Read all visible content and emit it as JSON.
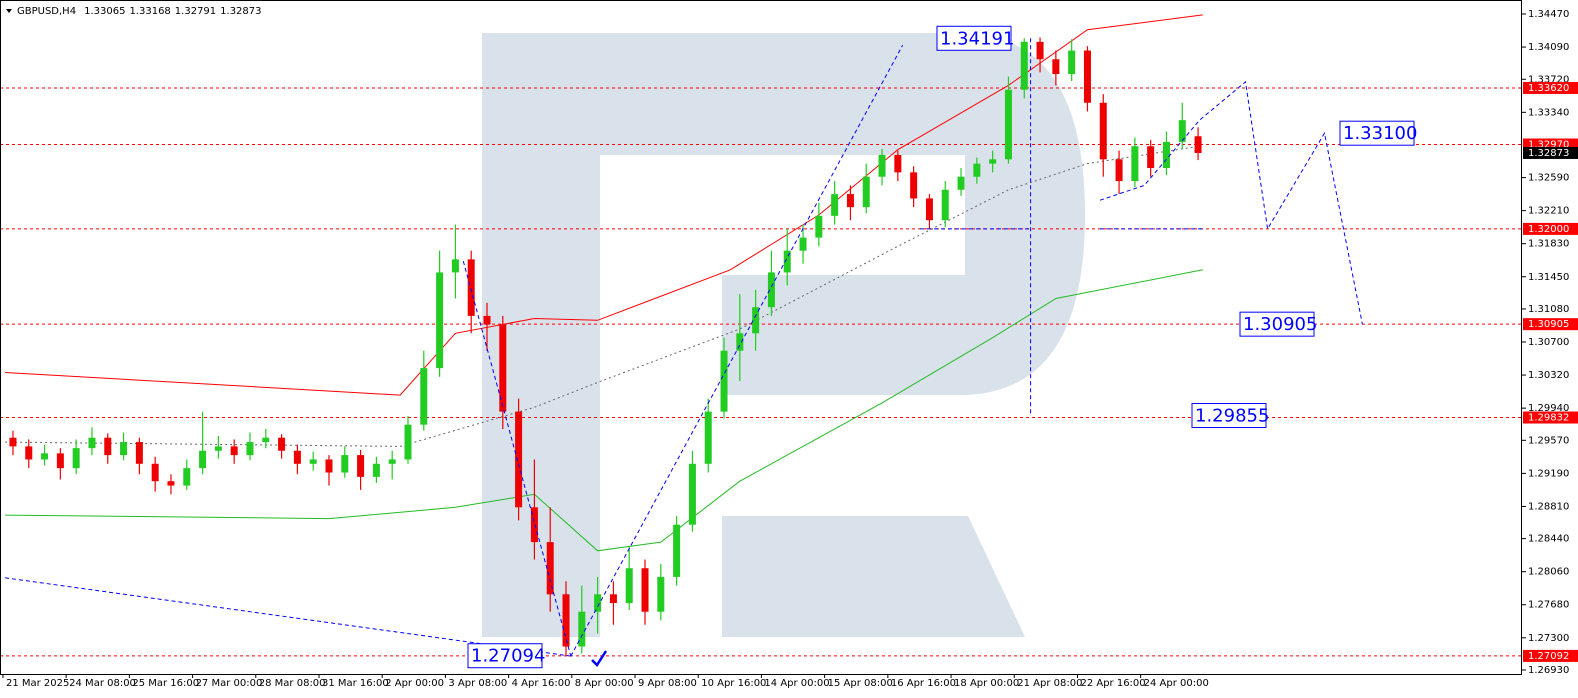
{
  "chart_data": {
    "type": "candlestick",
    "title": "GBPUSD,H4",
    "xlim": [
      -0.82,
      95.5
    ],
    "ylim": [
      1.26884,
      1.34631
    ],
    "up_color": "#22cc22",
    "down_color": "#ee0000",
    "candles": [
      [
        1.296,
        1.2968,
        1.294,
        1.295
      ],
      [
        1.295,
        1.2958,
        1.2925,
        1.2935
      ],
      [
        1.2935,
        1.2952,
        1.2928,
        1.2942
      ],
      [
        1.2942,
        1.2948,
        1.2912,
        1.2925
      ],
      [
        1.2925,
        1.2958,
        1.2918,
        1.2948
      ],
      [
        1.2948,
        1.2972,
        1.294,
        1.296
      ],
      [
        1.296,
        1.2965,
        1.293,
        1.294
      ],
      [
        1.294,
        1.2966,
        1.2934,
        1.2955
      ],
      [
        1.2955,
        1.296,
        1.2918,
        1.293
      ],
      [
        1.293,
        1.2938,
        1.2898,
        1.291
      ],
      [
        1.291,
        1.2918,
        1.2895,
        1.2905
      ],
      [
        1.2905,
        1.2935,
        1.29,
        1.2925
      ],
      [
        1.2925,
        1.299,
        1.2918,
        1.2945
      ],
      [
        1.2945,
        1.2962,
        1.2936,
        1.295
      ],
      [
        1.295,
        1.2958,
        1.293,
        1.294
      ],
      [
        1.294,
        1.2966,
        1.2934,
        1.2955
      ],
      [
        1.2955,
        1.297,
        1.2948,
        1.296
      ],
      [
        1.296,
        1.2964,
        1.2936,
        1.2945
      ],
      [
        1.2945,
        1.2952,
        1.2918,
        1.293
      ],
      [
        1.293,
        1.2944,
        1.2922,
        1.2935
      ],
      [
        1.2935,
        1.294,
        1.2905,
        1.292
      ],
      [
        1.292,
        1.295,
        1.2914,
        1.294
      ],
      [
        1.294,
        1.2946,
        1.29,
        1.2915
      ],
      [
        1.2915,
        1.2938,
        1.2908,
        1.293
      ],
      [
        1.293,
        1.2945,
        1.2912,
        1.2935
      ],
      [
        1.2935,
        1.2985,
        1.293,
        1.2975
      ],
      [
        1.2975,
        1.306,
        1.2968,
        1.304
      ],
      [
        1.304,
        1.3175,
        1.303,
        1.315
      ],
      [
        1.315,
        1.3205,
        1.312,
        1.3165
      ],
      [
        1.3165,
        1.3175,
        1.308,
        1.31
      ],
      [
        1.31,
        1.3115,
        1.306,
        1.309
      ],
      [
        1.309,
        1.31,
        1.297,
        1.299
      ],
      [
        1.299,
        1.3005,
        1.2865,
        1.288
      ],
      [
        1.288,
        1.2935,
        1.282,
        1.284
      ],
      [
        1.284,
        1.288,
        1.276,
        1.278
      ],
      [
        1.278,
        1.2795,
        1.2709,
        1.272
      ],
      [
        1.272,
        1.279,
        1.2712,
        1.276
      ],
      [
        1.276,
        1.28,
        1.2735,
        1.278
      ],
      [
        1.278,
        1.2795,
        1.2745,
        1.277
      ],
      [
        1.277,
        1.2835,
        1.2762,
        1.281
      ],
      [
        1.281,
        1.282,
        1.2745,
        1.276
      ],
      [
        1.276,
        1.2815,
        1.275,
        1.28
      ],
      [
        1.28,
        1.287,
        1.279,
        1.286
      ],
      [
        1.286,
        1.2945,
        1.2852,
        1.293
      ],
      [
        1.293,
        1.3005,
        1.292,
        1.299
      ],
      [
        1.299,
        1.3075,
        1.2982,
        1.306
      ],
      [
        1.306,
        1.3125,
        1.3025,
        1.308
      ],
      [
        1.308,
        1.313,
        1.306,
        1.311
      ],
      [
        1.311,
        1.3175,
        1.31,
        1.315
      ],
      [
        1.315,
        1.32,
        1.3135,
        1.3175
      ],
      [
        1.3175,
        1.3205,
        1.316,
        1.319
      ],
      [
        1.319,
        1.323,
        1.318,
        1.3215
      ],
      [
        1.3215,
        1.3255,
        1.3205,
        1.324
      ],
      [
        1.324,
        1.325,
        1.321,
        1.3225
      ],
      [
        1.3225,
        1.3275,
        1.3218,
        1.326
      ],
      [
        1.326,
        1.3292,
        1.325,
        1.3285
      ],
      [
        1.3285,
        1.329,
        1.3255,
        1.3265
      ],
      [
        1.3265,
        1.3272,
        1.3225,
        1.3235
      ],
      [
        1.3235,
        1.324,
        1.32,
        1.321
      ],
      [
        1.321,
        1.3255,
        1.3202,
        1.3245
      ],
      [
        1.3245,
        1.327,
        1.3238,
        1.326
      ],
      [
        1.326,
        1.3282,
        1.3252,
        1.3275
      ],
      [
        1.3275,
        1.329,
        1.3265,
        1.328
      ],
      [
        1.328,
        1.3375,
        1.3275,
        1.336
      ],
      [
        1.336,
        1.34191,
        1.335,
        1.3415
      ],
      [
        1.3415,
        1.342,
        1.338,
        1.3395
      ],
      [
        1.3395,
        1.3405,
        1.3365,
        1.3378
      ],
      [
        1.3378,
        1.3418,
        1.337,
        1.3405
      ],
      [
        1.3405,
        1.341,
        1.3335,
        1.3345
      ],
      [
        1.3345,
        1.3355,
        1.326,
        1.328
      ],
      [
        1.328,
        1.329,
        1.324,
        1.3255
      ],
      [
        1.3255,
        1.3305,
        1.3248,
        1.3295
      ],
      [
        1.3295,
        1.3302,
        1.326,
        1.327
      ],
      [
        1.327,
        1.3312,
        1.3262,
        1.33
      ],
      [
        1.33,
        1.3345,
        1.3292,
        1.3325
      ],
      [
        1.33065,
        1.33168,
        1.32791,
        1.32873
      ]
    ],
    "moving_averages": [
      {
        "color": "#ff0000",
        "style": "solid",
        "x": [
          -0.5,
          24.5,
          28,
          33,
          37,
          45.4,
          51,
          56,
          63,
          68,
          75.3
        ],
        "values": [
          1.3035,
          1.3009,
          1.308,
          1.3097,
          1.3095,
          1.3153,
          1.3216,
          1.3291,
          1.3365,
          1.3429,
          1.3446
        ]
      },
      {
        "color": "#22bb22",
        "style": "solid",
        "x": [
          -0.5,
          20,
          28,
          33,
          37,
          41,
          46,
          55,
          62,
          66,
          75.3
        ],
        "values": [
          1.2871,
          1.2867,
          1.288,
          1.2895,
          1.283,
          1.284,
          1.291,
          1.3,
          1.3075,
          1.312,
          1.3153
        ]
      },
      {
        "color": "#666666",
        "style": "dotted",
        "x": [
          -0.5,
          24.5,
          33,
          37.2,
          46,
          56,
          63,
          68,
          75.1
        ],
        "values": [
          1.2955,
          1.295,
          1.2995,
          1.3025,
          1.3085,
          1.318,
          1.3245,
          1.3275,
          1.3295
        ]
      }
    ],
    "forecast_lines": [
      {
        "color": "#0000ff",
        "x": [
          -0.5,
          35.3
        ],
        "values": [
          1.2799,
          1.2709
        ]
      },
      {
        "color": "#0000ff",
        "x": [
          28.5,
          35.3
        ],
        "values": [
          1.3163,
          1.2709
        ]
      },
      {
        "color": "#0000ff",
        "x": [
          35.3,
          56.3
        ],
        "values": [
          1.2709,
          1.3411
        ]
      },
      {
        "color": "#0000ff",
        "x": [
          64.4,
          64.4
        ],
        "values": [
          1.34191,
          1.29855
        ]
      },
      {
        "color": "#0000ff",
        "x": [
          57.4,
          64.4
        ],
        "values": [
          1.32,
          1.32
        ]
      },
      {
        "color": "#0000ff",
        "x": [
          68.8,
          75.3
        ],
        "values": [
          1.32,
          1.32
        ]
      },
      {
        "color": "#0000ff",
        "x": [
          68.8,
          71.6,
          75.1,
          78,
          79.4,
          83,
          85.4
        ],
        "values": [
          1.3233,
          1.325,
          1.3325,
          1.3369,
          1.32,
          1.331,
          1.30905
        ]
      }
    ],
    "price_levels": [
      {
        "value": 1.3362,
        "label": "1.33620"
      },
      {
        "value": 1.3297,
        "label": "1.32970"
      },
      {
        "value": 1.32,
        "label": "1.32000"
      },
      {
        "value": 1.30905,
        "label": "1.30905"
      },
      {
        "value": 1.29832,
        "label": "1.29832"
      },
      {
        "value": 1.27092,
        "label": "1.27092"
      }
    ],
    "level_color": "#ff0000",
    "last_price": 1.32873,
    "annotations": [
      1.34191,
      {
        "value": 1.331,
        "label": "1.33100"
      },
      1.30905,
      1.29855,
      1.27094
    ],
    "yticks": [
      {
        "value": 1.3447,
        "label": "1.34470"
      },
      {
        "value": 1.3409,
        "label": "1.34090"
      },
      {
        "value": 1.3372,
        "label": "1.33720"
      },
      {
        "value": 1.3334,
        "label": "1.33340"
      },
      {
        "value": 1.3259,
        "label": "1.32590"
      },
      {
        "value": 1.3221,
        "label": "1.32210"
      },
      {
        "value": 1.3183,
        "label": "1.31830"
      },
      {
        "value": 1.3145,
        "label": "1.31450"
      },
      {
        "value": 1.3108,
        "label": "1.31080"
      },
      {
        "value": 1.307,
        "label": "1.30700"
      },
      {
        "value": 1.3032,
        "label": "1.30320"
      },
      {
        "value": 1.2994,
        "label": "1.29940"
      },
      {
        "value": 1.2957,
        "label": "1.29570"
      },
      {
        "value": 1.2919,
        "label": "1.29190"
      },
      {
        "value": 1.2881,
        "label": "1.28810"
      },
      {
        "value": 1.2844,
        "label": "1.28440"
      },
      {
        "value": 1.2806,
        "label": "1.28060"
      },
      {
        "value": 1.2768,
        "label": "1.27680"
      },
      {
        "value": 1.273,
        "label": "1.27300"
      },
      {
        "value": 1.2693,
        "label": "1.26930"
      }
    ],
    "xticks": [
      {
        "value": 0,
        "label": "21 Mar 2025"
      },
      {
        "value": 4,
        "label": "24 Mar 08:00"
      },
      {
        "value": 8,
        "label": "25 Mar 16:00"
      },
      {
        "value": 12,
        "label": "27 Mar 00:00"
      },
      {
        "value": 16,
        "label": "28 Mar 08:00"
      },
      {
        "value": 20,
        "label": "31 Mar 16:00"
      },
      {
        "value": 24,
        "label": "2 Apr 00:00"
      },
      {
        "value": 28,
        "label": "3 Apr 08:00"
      },
      {
        "value": 32,
        "label": "4 Apr 16:00"
      },
      {
        "value": 36,
        "label": "8 Apr 00:00"
      },
      {
        "value": 40,
        "label": "9 Apr 08:00"
      },
      {
        "value": 44,
        "label": "10 Apr 16:00"
      },
      {
        "value": 48,
        "label": "14 Apr 00:00"
      },
      {
        "value": 52,
        "label": "15 Apr 08:00"
      },
      {
        "value": 56,
        "label": "16 Apr 16:00"
      },
      {
        "value": 60,
        "label": "18 Apr 00:00"
      },
      {
        "value": 64,
        "label": "21 Apr 08:00"
      },
      {
        "value": 68,
        "label": "22 Apr 16:00"
      },
      {
        "value": 72,
        "label": "24 Apr 00:00"
      }
    ]
  }
}
